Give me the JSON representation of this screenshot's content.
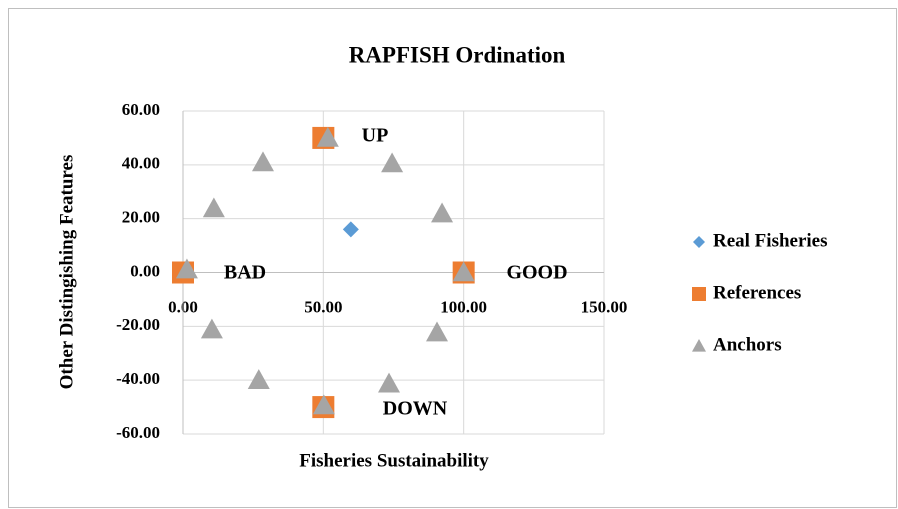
{
  "chart_data": {
    "type": "scatter",
    "title": "RAPFISH Ordination",
    "xlabel": "Fisheries Sustainability",
    "ylabel": "Other Distingishing Features",
    "xlim": [
      0,
      150
    ],
    "ylim": [
      -60,
      60
    ],
    "xticks": [
      {
        "value": 0,
        "label": "0.00"
      },
      {
        "value": 50,
        "label": "50.00"
      },
      {
        "value": 100,
        "label": "100.00"
      },
      {
        "value": 150,
        "label": "150.00"
      }
    ],
    "yticks": [
      {
        "value": -60,
        "label": "-60.00"
      },
      {
        "value": -40,
        "label": "-40.00"
      },
      {
        "value": -20,
        "label": "-20.00"
      },
      {
        "value": 0,
        "label": "0.00"
      },
      {
        "value": 20,
        "label": "20.00"
      },
      {
        "value": 40,
        "label": "40.00"
      },
      {
        "value": 60,
        "label": "60.00"
      }
    ],
    "grid": true,
    "legend": "right",
    "series": [
      {
        "name": "Real Fisheries",
        "color": "#5b9bd5",
        "marker": "diamond",
        "x": [
          59.8
        ],
        "values": [
          16
        ]
      },
      {
        "name": "References",
        "color": "#ed7d31",
        "marker": "square",
        "x": [
          0,
          100,
          50,
          50
        ],
        "values": [
          0,
          0,
          50,
          -50
        ]
      },
      {
        "name": "Anchors",
        "color": "#a5a5a5",
        "marker": "triangle",
        "x": [
          51.6,
          74.5,
          28.5,
          11,
          92.3,
          1.4,
          100,
          10.3,
          90.5,
          27,
          73.4,
          50.2
        ],
        "values": [
          50,
          40.5,
          40.9,
          23.8,
          21.9,
          1.1,
          0,
          -21.2,
          -22.3,
          -40,
          -41.3,
          -49.4
        ]
      }
    ],
    "annotations": [
      "UP",
      "BAD",
      "GOOD",
      "DOWN"
    ]
  }
}
